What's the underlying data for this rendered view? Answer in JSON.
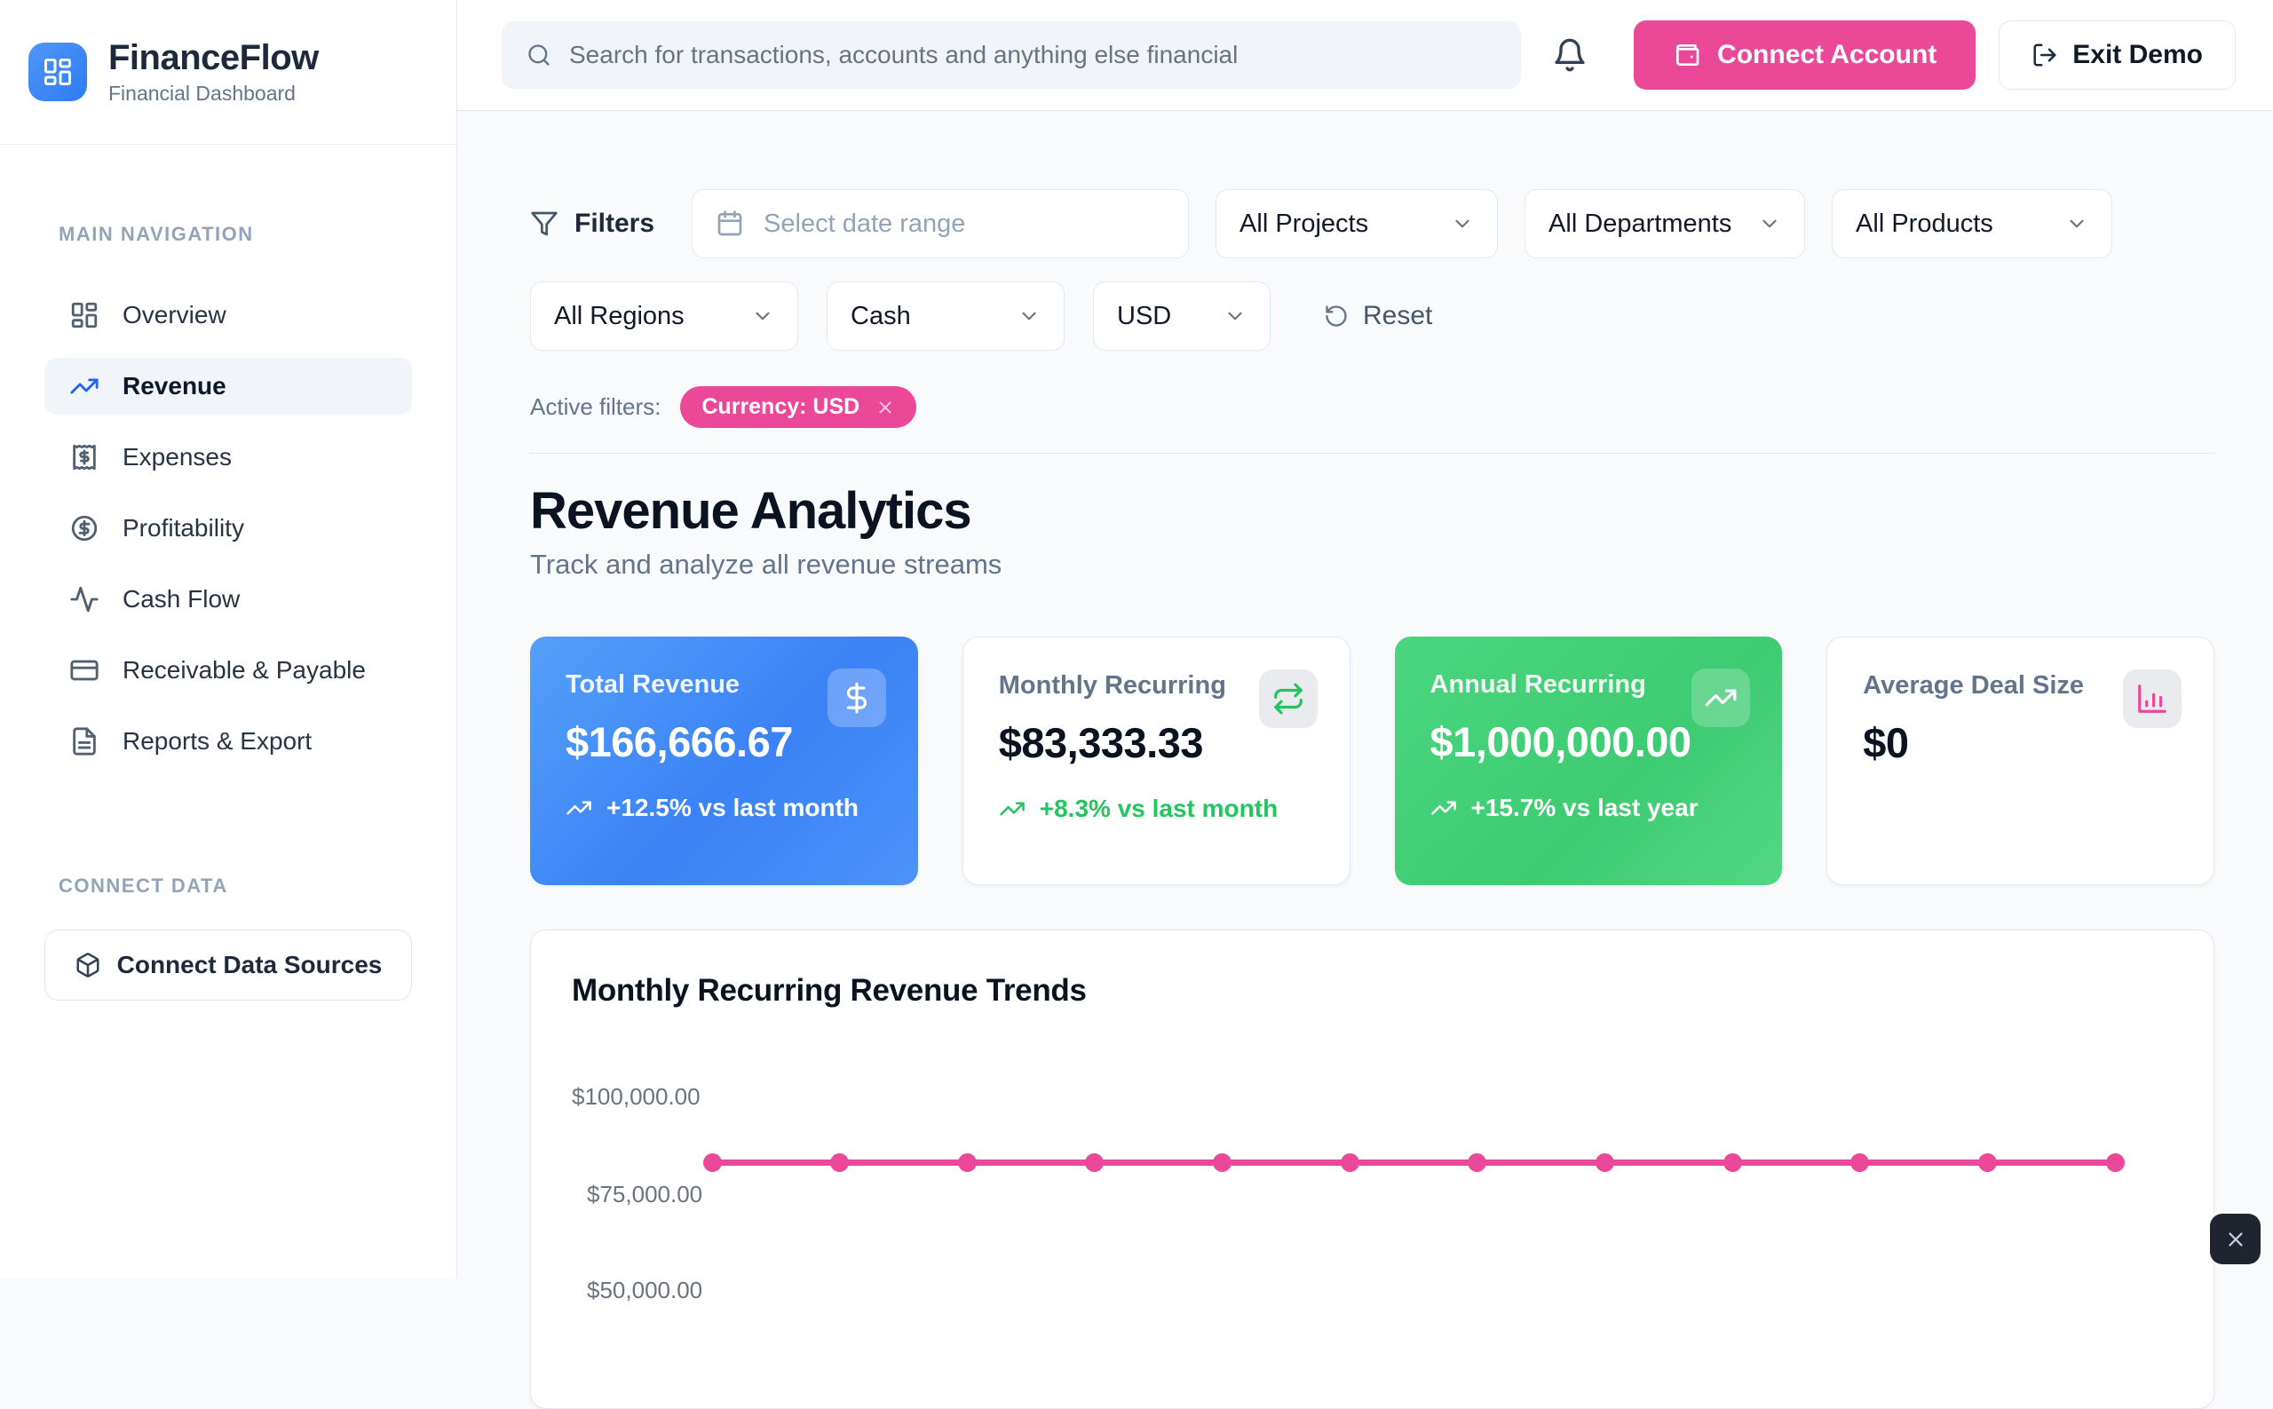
{
  "app": {
    "name": "FinanceFlow",
    "tagline": "Financial Dashboard"
  },
  "header": {
    "search_placeholder": "Search for transactions, accounts and anything else financial",
    "connect_account_label": "Connect Account",
    "exit_demo_label": "Exit Demo"
  },
  "sidebar": {
    "main_nav_title": "MAIN NAVIGATION",
    "items": [
      {
        "label": "Overview",
        "icon": "dashboard-icon",
        "active": false
      },
      {
        "label": "Revenue",
        "icon": "trending-up-icon",
        "active": true
      },
      {
        "label": "Expenses",
        "icon": "receipt-icon",
        "active": false
      },
      {
        "label": "Profitability",
        "icon": "dollar-circle-icon",
        "active": false
      },
      {
        "label": "Cash Flow",
        "icon": "activity-icon",
        "active": false
      },
      {
        "label": "Receivable & Payable",
        "icon": "credit-card-icon",
        "active": false
      },
      {
        "label": "Reports & Export",
        "icon": "file-text-icon",
        "active": false
      }
    ],
    "connect_section_title": "CONNECT DATA",
    "connect_button_label": "Connect Data Sources"
  },
  "filters": {
    "title": "Filters",
    "date_range_placeholder": "Select date range",
    "row1": [
      "All Projects",
      "All Departments",
      "All Products"
    ],
    "row2": [
      "All Regions",
      "Cash",
      "USD"
    ],
    "reset_label": "Reset",
    "active_filters_label": "Active filters:",
    "active_chip_label": "Currency: USD"
  },
  "page": {
    "title": "Revenue Analytics",
    "subtitle": "Track and analyze all revenue streams"
  },
  "kpis": [
    {
      "label": "Total Revenue",
      "value": "$166,666.67",
      "delta": "+12.5% vs last month",
      "icon": "dollar-icon",
      "style": "blue"
    },
    {
      "label": "Monthly Recurring",
      "value": "$83,333.33",
      "delta": "+8.3% vs last month",
      "icon": "repeat-icon",
      "style": "white"
    },
    {
      "label": "Annual Recurring",
      "value": "$1,000,000.00",
      "delta": "+15.7% vs last year",
      "icon": "trending-up-icon",
      "style": "green"
    },
    {
      "label": "Average Deal Size",
      "value": "$0",
      "delta": "",
      "icon": "bar-chart-icon",
      "style": "white"
    }
  ],
  "chart_card": {
    "title": "Monthly Recurring Revenue Trends"
  },
  "chart_data": {
    "type": "line",
    "title": "Monthly Recurring Revenue Trends",
    "series": [
      {
        "name": "Monthly Recurring Revenue",
        "values": [
          83333.33,
          83333.33,
          83333.33,
          83333.33,
          83333.33,
          83333.33,
          83333.33,
          83333.33,
          83333.33,
          83333.33,
          83333.33,
          83333.33
        ]
      }
    ],
    "points_count": 12,
    "y_tick_labels": [
      "$100,000.00",
      "$75,000.00",
      "$50,000.00"
    ],
    "y_tick_values": [
      100000,
      75000,
      50000
    ],
    "x_labels_visible": false,
    "grid": false,
    "legend": false,
    "line_color": "#ec4899"
  },
  "colors": {
    "accent_pink": "#ec4899",
    "brand_blue": "#3b82f6",
    "positive_green": "#22c55e",
    "card_blue_gradient": [
      "#54a0f8",
      "#3b82f6"
    ],
    "card_green_gradient": [
      "#49d67e",
      "#3ecb72"
    ]
  },
  "overlay": {
    "close_label": "×"
  }
}
